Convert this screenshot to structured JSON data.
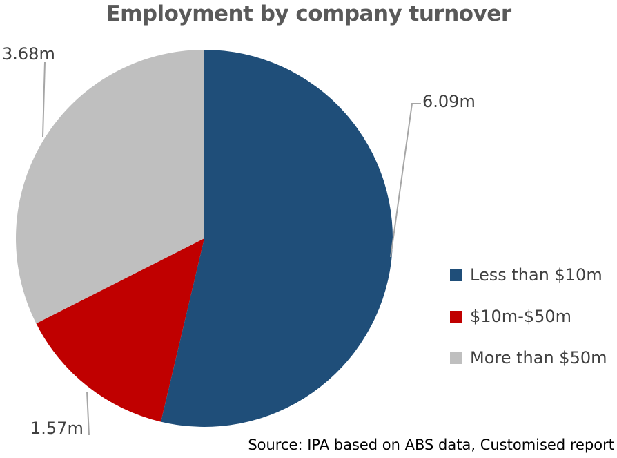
{
  "chart_data": {
    "type": "pie",
    "title": "Employment by company turnover",
    "slices": [
      {
        "name": "Less than $10m",
        "value": 6.09,
        "label": "6.09m",
        "color": "#1f4e79"
      },
      {
        "name": "$10m-$50m",
        "value": 1.57,
        "label": "1.57m",
        "color": "#c00000"
      },
      {
        "name": "More than $50m",
        "value": 3.68,
        "label": "3.68m",
        "color": "#bfbfbf"
      }
    ],
    "start_angle": "12 o'clock",
    "direction": "clockwise",
    "legend_position": "right",
    "source": "Source: IPA based on ABS data, Customised report"
  }
}
